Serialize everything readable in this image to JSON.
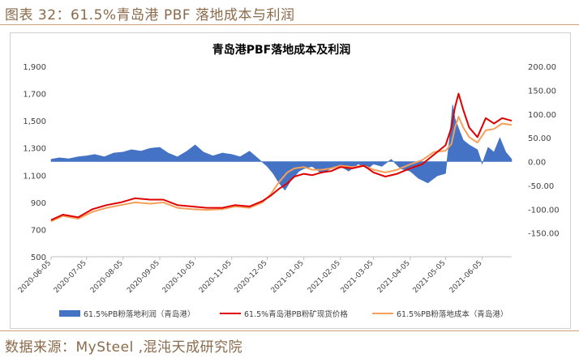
{
  "page": {
    "figure_caption": "图表 32：61.5%青岛港 PBF 落地成本与利润",
    "source": "数据来源：MySteel ,混沌天成研究院"
  },
  "colors": {
    "caption": "#8a6a4a",
    "rule": "#c9a27a",
    "profit": "#4472c4",
    "spot": "#e00000",
    "cost": "#f4a05a"
  },
  "chart_data": {
    "type": "line",
    "title": "青岛港PBF落地成本及利润",
    "y_left": {
      "ylim": [
        500,
        1900
      ],
      "ticks": [
        500,
        700,
        900,
        1100,
        1300,
        1500,
        1700,
        1900
      ],
      "tick_labels": [
        "500",
        "700",
        "900",
        "1,100",
        "1,300",
        "1,500",
        "1,700",
        "1,900"
      ]
    },
    "y_right": {
      "ylim": [
        -200,
        200
      ],
      "ticks": [
        -150,
        -100,
        -50,
        0,
        50,
        100,
        150,
        200
      ],
      "tick_labels": [
        "-150.00",
        "-100.00",
        "-50.00",
        "0.00",
        "50.00",
        "100.00",
        "150.00",
        "200.00"
      ]
    },
    "x_ticks": [
      "2020-06-05",
      "2020-07-05",
      "2020-08-05",
      "2020-09-05",
      "2020-10-05",
      "2020-11-05",
      "2020-12-05",
      "2021-01-05",
      "2021-02-05",
      "2021-03-05",
      "2021-04-05",
      "2021-05-05",
      "2021-06-05"
    ],
    "x_range": [
      "2020-06-05",
      "2021-06-30"
    ],
    "legend": [
      "61.5%PB粉落地利润（青岛港）",
      "61.5%青岛港PB粉矿现货价格",
      "61.5%PB粉落地成本（青岛港）"
    ],
    "series": [
      {
        "name": "61.5%PB粉落地利润（青岛港）",
        "type": "area",
        "axis": "right",
        "x": [
          "2020-06-05",
          "2020-06-12",
          "2020-06-20",
          "2020-06-28",
          "2020-07-05",
          "2020-07-12",
          "2020-07-20",
          "2020-07-28",
          "2020-08-05",
          "2020-08-12",
          "2020-08-20",
          "2020-08-28",
          "2020-09-05",
          "2020-09-12",
          "2020-09-20",
          "2020-09-28",
          "2020-10-05",
          "2020-10-12",
          "2020-10-20",
          "2020-10-28",
          "2020-11-05",
          "2020-11-12",
          "2020-11-20",
          "2020-11-28",
          "2020-12-05",
          "2020-12-10",
          "2020-12-15",
          "2020-12-20",
          "2020-12-25",
          "2021-01-01",
          "2021-01-05",
          "2021-01-12",
          "2021-01-20",
          "2021-01-28",
          "2021-02-05",
          "2021-02-12",
          "2021-02-20",
          "2021-02-28",
          "2021-03-05",
          "2021-03-12",
          "2021-03-20",
          "2021-03-28",
          "2021-04-05",
          "2021-04-12",
          "2021-04-20",
          "2021-04-28",
          "2021-05-05",
          "2021-05-08",
          "2021-05-11",
          "2021-05-13",
          "2021-05-16",
          "2021-05-20",
          "2021-05-25",
          "2021-06-01",
          "2021-06-05",
          "2021-06-10",
          "2021-06-15",
          "2021-06-20",
          "2021-06-25",
          "2021-06-30"
        ],
        "values": [
          5,
          8,
          6,
          10,
          12,
          15,
          10,
          18,
          20,
          25,
          22,
          28,
          30,
          18,
          10,
          22,
          35,
          20,
          12,
          18,
          15,
          10,
          22,
          5,
          -10,
          -25,
          -45,
          -60,
          -40,
          -20,
          -15,
          -10,
          -25,
          -15,
          -10,
          -20,
          -5,
          -15,
          -5,
          -10,
          5,
          -15,
          -20,
          -35,
          -45,
          -30,
          -25,
          40,
          120,
          90,
          70,
          45,
          35,
          25,
          -5,
          30,
          20,
          50,
          20,
          5
        ]
      },
      {
        "name": "61.5%青岛港PB粉矿现货价格",
        "type": "line",
        "axis": "left",
        "x": [
          "2020-06-05",
          "2020-06-15",
          "2020-06-28",
          "2020-07-10",
          "2020-07-22",
          "2020-08-03",
          "2020-08-15",
          "2020-08-28",
          "2020-09-08",
          "2020-09-20",
          "2020-10-02",
          "2020-10-15",
          "2020-10-28",
          "2020-11-08",
          "2020-11-20",
          "2020-12-01",
          "2020-12-08",
          "2020-12-15",
          "2020-12-22",
          "2020-12-28",
          "2021-01-05",
          "2021-01-12",
          "2021-01-20",
          "2021-01-28",
          "2021-02-05",
          "2021-02-15",
          "2021-02-25",
          "2021-03-05",
          "2021-03-15",
          "2021-03-25",
          "2021-04-05",
          "2021-04-15",
          "2021-04-25",
          "2021-05-05",
          "2021-05-10",
          "2021-05-13",
          "2021-05-16",
          "2021-05-20",
          "2021-05-25",
          "2021-06-01",
          "2021-06-08",
          "2021-06-15",
          "2021-06-22",
          "2021-06-30"
        ],
        "values": [
          770,
          810,
          790,
          850,
          880,
          900,
          930,
          920,
          920,
          880,
          870,
          860,
          860,
          880,
          870,
          910,
          950,
          1000,
          1040,
          1090,
          1110,
          1100,
          1120,
          1130,
          1160,
          1150,
          1170,
          1120,
          1090,
          1110,
          1150,
          1180,
          1250,
          1320,
          1450,
          1600,
          1700,
          1580,
          1450,
          1380,
          1520,
          1480,
          1520,
          1500
        ]
      },
      {
        "name": "61.5%PB粉落地成本（青岛港）",
        "type": "line",
        "axis": "left",
        "x": [
          "2020-06-05",
          "2020-06-15",
          "2020-06-28",
          "2020-07-10",
          "2020-07-22",
          "2020-08-03",
          "2020-08-15",
          "2020-08-28",
          "2020-09-08",
          "2020-09-20",
          "2020-10-02",
          "2020-10-15",
          "2020-10-28",
          "2020-11-08",
          "2020-11-20",
          "2020-12-01",
          "2020-12-08",
          "2020-12-15",
          "2020-12-22",
          "2020-12-28",
          "2021-01-05",
          "2021-01-12",
          "2021-01-20",
          "2021-01-28",
          "2021-02-05",
          "2021-02-15",
          "2021-02-25",
          "2021-03-05",
          "2021-03-15",
          "2021-03-25",
          "2021-04-05",
          "2021-04-15",
          "2021-04-25",
          "2021-05-05",
          "2021-05-10",
          "2021-05-13",
          "2021-05-16",
          "2021-05-20",
          "2021-05-25",
          "2021-06-01",
          "2021-06-08",
          "2021-06-15",
          "2021-06-22",
          "2021-06-30"
        ],
        "values": [
          760,
          800,
          780,
          830,
          860,
          880,
          900,
          890,
          900,
          860,
          850,
          845,
          850,
          870,
          860,
          900,
          960,
          1050,
          1120,
          1150,
          1160,
          1140,
          1140,
          1150,
          1170,
          1160,
          1170,
          1140,
          1120,
          1140,
          1180,
          1210,
          1270,
          1280,
          1330,
          1450,
          1530,
          1450,
          1380,
          1340,
          1430,
          1440,
          1480,
          1470
        ]
      }
    ]
  }
}
